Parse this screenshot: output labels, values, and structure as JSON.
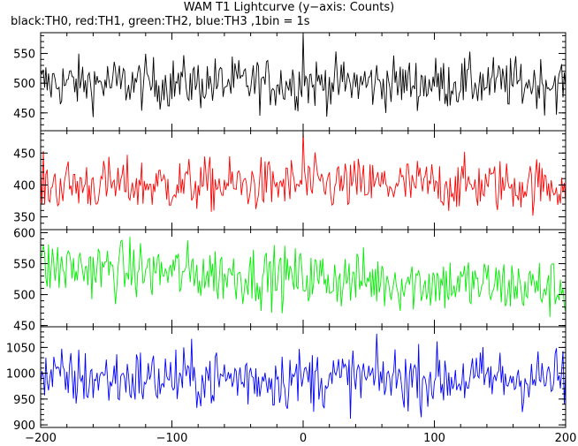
{
  "title": "WAM T1 Lightcurve (y−axis: Counts)",
  "subtitle": "black:TH0, red:TH1, green:TH2, blue:TH3 ,1bin = 1s",
  "chart_data": {
    "type": "line",
    "x_range": [
      -200,
      200
    ],
    "x_ticks": [
      -200,
      -100,
      0,
      100,
      200
    ],
    "x_tick_labels": [
      "−200",
      "−100",
      "0",
      "100",
      "200"
    ],
    "panels": [
      {
        "series": "TH0",
        "color": "#000000",
        "ylim": [
          420,
          585
        ],
        "y_ticks": [
          450,
          500,
          550
        ],
        "y_tick_labels": [
          "450",
          "500",
          "550"
        ],
        "mean": 500,
        "noise": 22,
        "peak": {
          "x": 0,
          "value": 590
        }
      },
      {
        "series": "TH1",
        "color": "#ff0000",
        "ylim": [
          330,
          485
        ],
        "y_ticks": [
          350,
          400,
          450
        ],
        "y_tick_labels": [
          "350",
          "400",
          "450"
        ],
        "mean": 400,
        "noise": 21,
        "peak": {
          "x": 0,
          "value": 490
        }
      },
      {
        "series": "TH2",
        "color": "#00ee00",
        "ylim": [
          448,
          605
        ],
        "y_ticks": [
          450,
          500,
          550,
          600
        ],
        "y_tick_labels": [
          "450",
          "500",
          "550",
          "600"
        ],
        "mean_start": 545,
        "mean_end": 510,
        "noise": 24
      },
      {
        "series": "TH3",
        "color": "#0000ff",
        "ylim": [
          895,
          1090
        ],
        "y_ticks": [
          900,
          950,
          1000,
          1050
        ],
        "y_tick_labels": [
          "900",
          "950",
          "1000",
          "1050"
        ],
        "mean": 990,
        "noise": 30
      }
    ]
  }
}
